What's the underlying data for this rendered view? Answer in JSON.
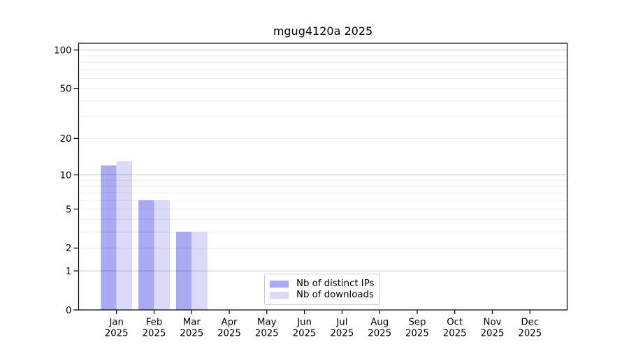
{
  "title": "mgug4120a 2025",
  "chart_data": {
    "type": "bar",
    "title": "mgug4120a 2025",
    "xlabel": "",
    "ylabel": "",
    "yscale": "log1p",
    "ylim": [
      0,
      113
    ],
    "grid": true,
    "legend_position": "lower center",
    "categories": [
      "Jan",
      "Feb",
      "Mar",
      "Apr",
      "May",
      "Jun",
      "Jul",
      "Aug",
      "Sep",
      "Oct",
      "Nov",
      "Dec"
    ],
    "category_year": "2025",
    "ytick_values": [
      100,
      50,
      20,
      10,
      5,
      2,
      1,
      0
    ],
    "grid_minor_values": [
      2,
      3,
      4,
      5,
      6,
      7,
      8,
      9,
      20,
      30,
      40,
      50,
      60,
      70,
      80,
      90
    ],
    "grid_major_values": [
      1,
      10,
      100
    ],
    "series": [
      {
        "name": "Nb of distinct IPs",
        "color": "#aaaaf3",
        "values": [
          12,
          6,
          3,
          0,
          0,
          0,
          0,
          0,
          0,
          0,
          0,
          0
        ]
      },
      {
        "name": "Nb of downloads",
        "color": "#dbdbf9",
        "values": [
          13,
          6,
          3,
          0,
          0,
          0,
          0,
          0,
          0,
          0,
          0,
          0
        ]
      }
    ]
  },
  "colors": {
    "grid_minor": "rgba(0,0,0,0.075)",
    "grid_major": "rgba(0,0,0,0.22)",
    "spine": "#000000",
    "legend_border": "#cccccc"
  }
}
